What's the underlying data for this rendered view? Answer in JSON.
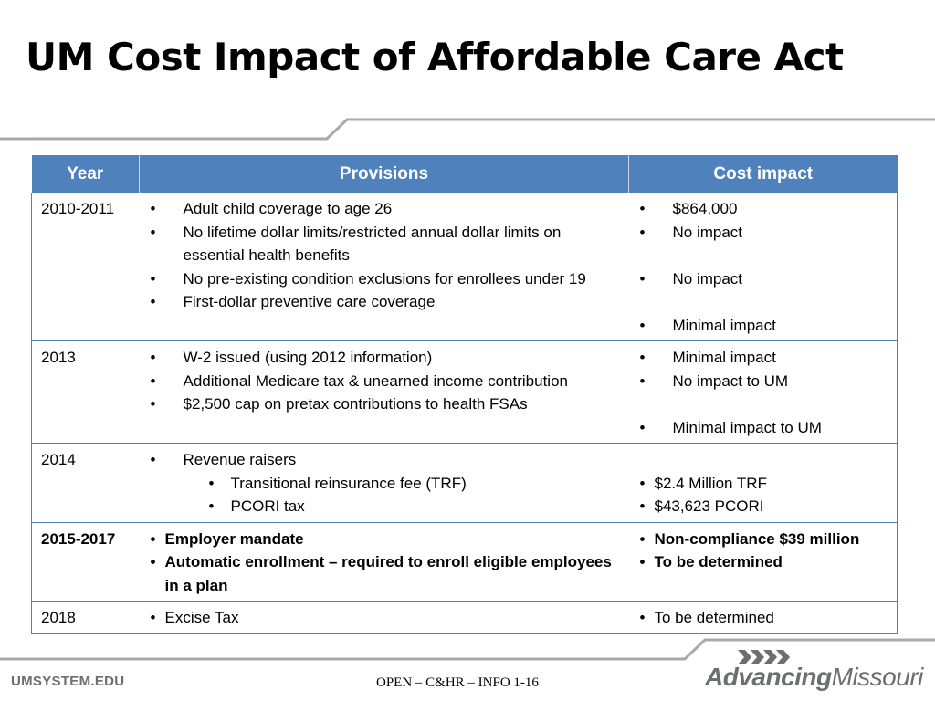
{
  "title": "UM Cost Impact of Affordable Care Act",
  "table": {
    "headers": [
      "Year",
      "Provisions",
      "Cost impact"
    ],
    "rows": [
      {
        "year": "2010-2011",
        "provisions": [
          "Adult child coverage to age 26",
          "No lifetime dollar limits/restricted annual dollar limits on essential health benefits",
          "No pre-existing condition exclusions for enrollees under 19",
          "First-dollar preventive care coverage"
        ],
        "impacts": [
          "$864,000",
          "No impact",
          "No impact",
          "Minimal impact"
        ]
      },
      {
        "year": "2013",
        "provisions": [
          "W-2 issued (using 2012 information)",
          "Additional Medicare tax & unearned income contribution",
          "$2,500 cap on pretax contributions to health FSAs"
        ],
        "impacts": [
          "Minimal impact",
          "No impact to UM",
          "Minimal impact to UM"
        ]
      },
      {
        "year": "2014",
        "provisions": [
          "Revenue raisers"
        ],
        "sub_provisions": [
          "Transitional reinsurance fee (TRF)",
          "PCORI tax"
        ],
        "impacts": [
          "$2.4 Million TRF",
          "$43,623 PCORI"
        ]
      },
      {
        "year": "2015-2017",
        "provisions": [
          "Employer mandate",
          "Automatic enrollment – required to enroll eligible employees in a plan"
        ],
        "impacts": [
          "Non-compliance $39 million",
          "To be determined"
        ]
      },
      {
        "year": "2018",
        "provisions": [
          "Excise Tax"
        ],
        "impacts": [
          "To be determined"
        ]
      }
    ]
  },
  "footer": {
    "left": "UMSYSTEM.EDU",
    "center": "OPEN – C&HR – INFO 1-16",
    "logo_part1": "Advancing",
    "logo_part2": "Missouri"
  },
  "colors": {
    "header_bg": "#4f81bd",
    "deco_line": "#a7a9ac",
    "footer_text": "#6d6e71"
  }
}
